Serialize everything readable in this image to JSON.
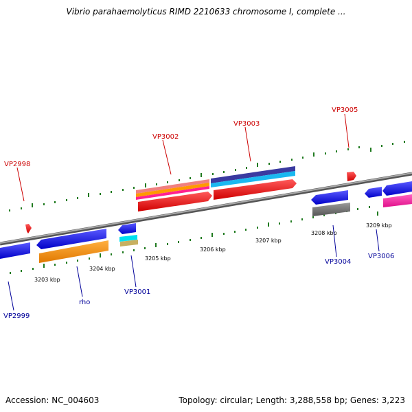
{
  "title": "Vibrio parahaemolyticus RIMD 2210633 chromosome I, complete ...",
  "footer": {
    "accession": "Accession: NC_004603",
    "info": "Topology: circular; Length: 3,288,558 bp; Genes: 3,223"
  },
  "colors": {
    "forward_label": "#cc0000",
    "reverse_label": "#000099",
    "backbone": "#888888",
    "ticks": "#1f7a1f"
  },
  "kbp_labels": [
    "3203 kbp",
    "3204 kbp",
    "3205 kbp",
    "3206 kbp",
    "3207 kbp",
    "3208 kbp",
    "3209 kbp"
  ],
  "gene_labels": {
    "top": [
      "VP2998",
      "VP3002",
      "VP3003",
      "VP3005"
    ],
    "bottom": [
      "VP2999",
      "rho",
      "VP3001",
      "VP3004",
      "VP3006"
    ]
  }
}
